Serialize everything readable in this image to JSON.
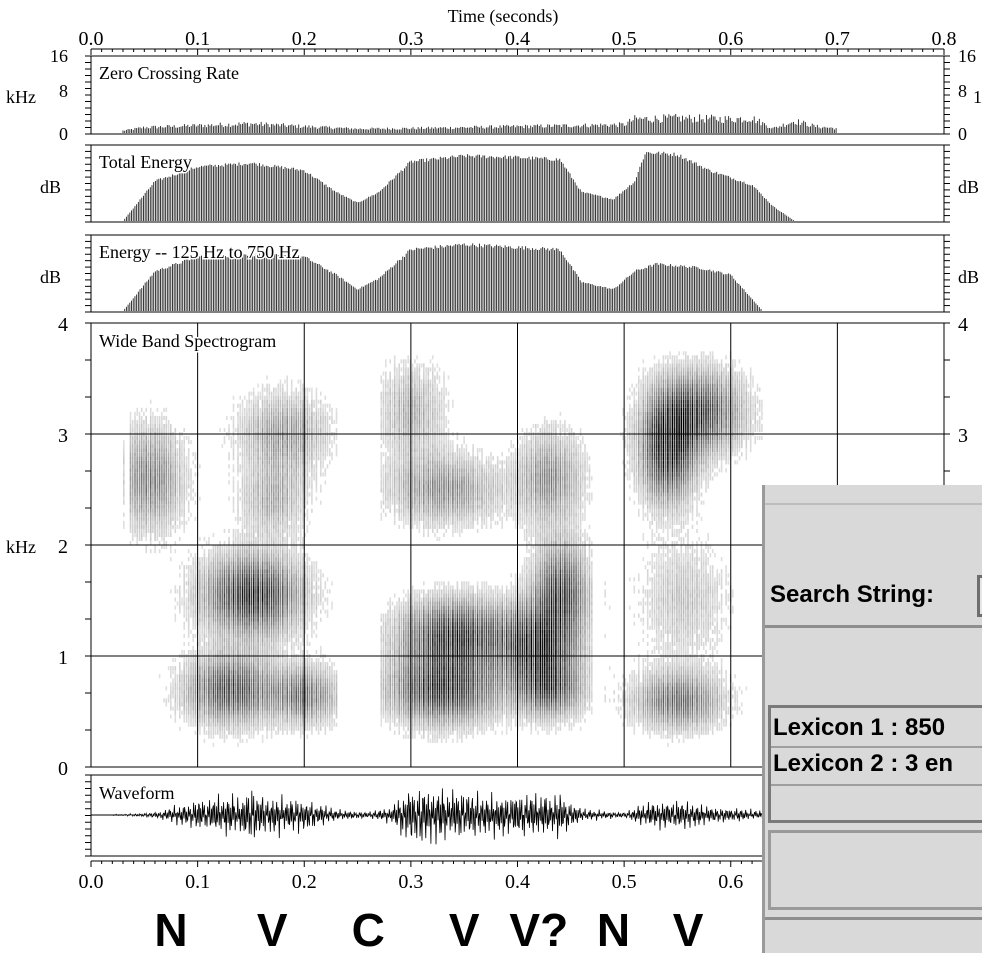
{
  "chart_data": {
    "type": "spectrogram-display",
    "x_axis": {
      "label": "Time (seconds)",
      "top_ticks": [
        "0.0",
        "0.1",
        "0.2",
        "0.3",
        "0.4",
        "0.5",
        "0.6",
        "0.7",
        "0.8"
      ],
      "bottom_ticks": [
        "0.0",
        "0.1",
        "0.2",
        "0.3",
        "0.4",
        "0.5",
        "0.6"
      ],
      "range": [
        0.0,
        0.8
      ]
    },
    "panels": [
      {
        "name": "Zero Crossing Rate",
        "unit": "kHz",
        "left_ticks": [
          "16",
          "8",
          "0"
        ],
        "right_ticks": [
          "16",
          "8",
          "0"
        ],
        "right_unit_fragment": "1",
        "envelope": [
          [
            0.03,
            0.5
          ],
          [
            0.05,
            1.2
          ],
          [
            0.1,
            1.6
          ],
          [
            0.15,
            2.0
          ],
          [
            0.2,
            1.4
          ],
          [
            0.25,
            0.9
          ],
          [
            0.3,
            1.0
          ],
          [
            0.35,
            1.2
          ],
          [
            0.4,
            1.4
          ],
          [
            0.45,
            1.6
          ],
          [
            0.5,
            1.8
          ],
          [
            0.51,
            3.0
          ],
          [
            0.55,
            3.2
          ],
          [
            0.6,
            3.0
          ],
          [
            0.62,
            3.2
          ],
          [
            0.64,
            1.0
          ],
          [
            0.66,
            2.6
          ],
          [
            0.68,
            1.4
          ],
          [
            0.7,
            1.0
          ]
        ]
      },
      {
        "name": "Total Energy",
        "unit": "dB",
        "right_unit": "dB",
        "envelope": [
          [
            0.03,
            0.0
          ],
          [
            0.06,
            0.55
          ],
          [
            0.1,
            0.75
          ],
          [
            0.15,
            0.8
          ],
          [
            0.2,
            0.7
          ],
          [
            0.23,
            0.4
          ],
          [
            0.25,
            0.25
          ],
          [
            0.27,
            0.4
          ],
          [
            0.3,
            0.82
          ],
          [
            0.35,
            0.9
          ],
          [
            0.4,
            0.88
          ],
          [
            0.44,
            0.85
          ],
          [
            0.46,
            0.4
          ],
          [
            0.49,
            0.3
          ],
          [
            0.51,
            0.55
          ],
          [
            0.52,
            0.95
          ],
          [
            0.55,
            0.92
          ],
          [
            0.58,
            0.7
          ],
          [
            0.62,
            0.5
          ],
          [
            0.64,
            0.2
          ],
          [
            0.66,
            0.0
          ]
        ]
      },
      {
        "name": "Energy -- 125 Hz to 750 Hz",
        "unit": "dB",
        "right_unit": "dB",
        "envelope": [
          [
            0.03,
            0.0
          ],
          [
            0.06,
            0.55
          ],
          [
            0.1,
            0.75
          ],
          [
            0.15,
            0.78
          ],
          [
            0.2,
            0.75
          ],
          [
            0.23,
            0.5
          ],
          [
            0.25,
            0.3
          ],
          [
            0.27,
            0.45
          ],
          [
            0.3,
            0.85
          ],
          [
            0.35,
            0.92
          ],
          [
            0.4,
            0.88
          ],
          [
            0.44,
            0.85
          ],
          [
            0.46,
            0.4
          ],
          [
            0.49,
            0.3
          ],
          [
            0.51,
            0.55
          ],
          [
            0.53,
            0.65
          ],
          [
            0.57,
            0.6
          ],
          [
            0.6,
            0.5
          ],
          [
            0.63,
            0.0
          ]
        ]
      },
      {
        "name": "Wide Band Spectrogram",
        "unit": "kHz",
        "left_ticks": [
          "4",
          "3",
          "2",
          "1",
          "0"
        ],
        "right_ticks": [
          "4",
          "3"
        ],
        "range": [
          0,
          4
        ]
      },
      {
        "name": "Waveform"
      }
    ],
    "segments": [
      "N",
      "V",
      "C",
      "V",
      "V?",
      "N",
      "V"
    ],
    "segment_times": [
      0.075,
      0.17,
      0.26,
      0.35,
      0.42,
      0.49,
      0.56
    ]
  },
  "overlay": {
    "search_label": "Search String:",
    "lexicon_1": "Lexicon 1 : 850",
    "lexicon_2": "Lexicon 2 : 3 en"
  }
}
